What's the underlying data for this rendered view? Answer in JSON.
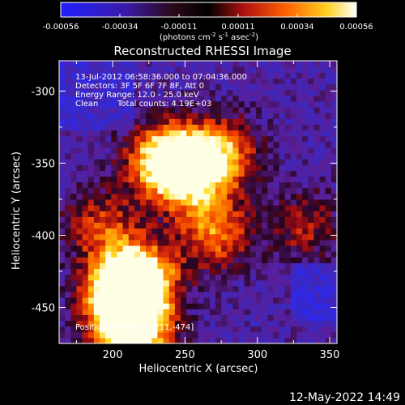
{
  "colorbar": {
    "ticks": [
      "-0.00056",
      "-0.00034",
      "-0.00011",
      "0.00011",
      "0.00034",
      "0.00056"
    ],
    "range": [
      -0.00056,
      0.00056
    ],
    "unit_prefix": "(photons cm",
    "unit_exp1": "-2",
    "unit_mid": " s",
    "unit_exp2": "-1",
    "unit_mid2": " asec",
    "unit_suffix": ")"
  },
  "chart_data": {
    "type": "heatmap",
    "title": "Reconstructed RHESSI Image",
    "xlabel": "Heliocentric X (arcsec)",
    "ylabel": "Heliocentric Y (arcsec)",
    "xlim": [
      163,
      355
    ],
    "ylim": [
      -475,
      -279
    ],
    "x_ticks": [
      200,
      250,
      300,
      350
    ],
    "y_ticks": [
      -300,
      -350,
      -400,
      -450
    ],
    "colormap": "diverging blue-purple-black-red-yellow-white",
    "value_range": [
      -0.00056,
      0.00056
    ],
    "annotations": [
      "13-Jul-2012 06:58:36.000 to 07:04:36.000",
      "Detectors: 3F 5F 6F 7F 8F, Att 0",
      "Energy Range: 12.0 - 25.0 keV",
      "Clean",
      "Total counts: 4.19E+03",
      "Position of Peak = [211,-474]"
    ],
    "peak": [
      211,
      -474
    ],
    "emission_sources": [
      {
        "x": 250,
        "y": -355,
        "intensity": 0.95
      },
      {
        "x": 232,
        "y": -350,
        "intensity": 0.7
      },
      {
        "x": 215,
        "y": -432,
        "intensity": 1.0
      },
      {
        "x": 205,
        "y": -445,
        "intensity": 0.9
      },
      {
        "x": 275,
        "y": -345,
        "intensity": 0.55
      },
      {
        "x": 330,
        "y": -395,
        "intensity": 0.35
      },
      {
        "x": 190,
        "y": -395,
        "intensity": 0.45
      },
      {
        "x": 268,
        "y": -400,
        "intensity": 0.6
      },
      {
        "x": 211,
        "y": -470,
        "intensity": 1.0
      }
    ]
  },
  "timestamp": "12-May-2022 14:49"
}
